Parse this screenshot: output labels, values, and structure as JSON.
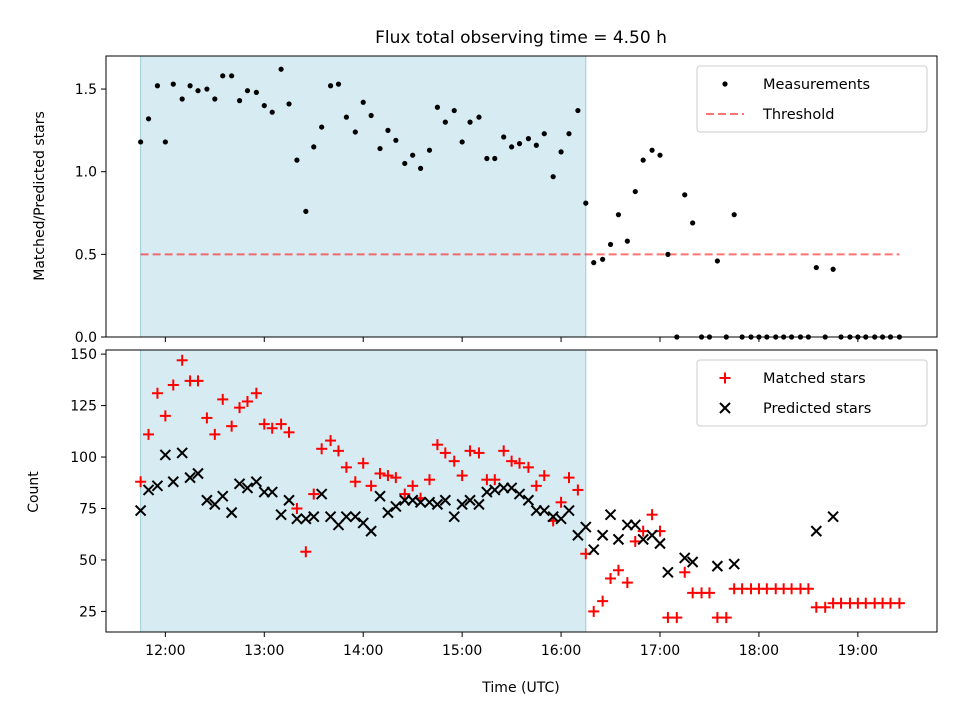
{
  "chart_data": [
    {
      "type": "scatter",
      "title": "Flux total observing time = 4.50 h",
      "xlabel": "",
      "ylabel": "Matched/Predicted stars",
      "xlim": [
        11.4,
        19.8
      ],
      "ylim": [
        0,
        1.7
      ],
      "yticks": [
        0,
        0.5,
        1.0,
        1.5
      ],
      "ytick_labels": [
        "0.0",
        "0.5",
        "1.0",
        "1.5"
      ],
      "shaded_region": [
        11.75,
        16.25
      ],
      "legend_position": "top-right",
      "legend": [
        "Measurements",
        "Threshold"
      ],
      "threshold": {
        "name": "Threshold",
        "value": 0.5,
        "x_range": [
          11.75,
          19.42
        ]
      },
      "series": [
        {
          "name": "Measurements",
          "marker": "dot",
          "color": "#000000",
          "points": [
            [
              11.75,
              1.18
            ],
            [
              11.83,
              1.32
            ],
            [
              11.92,
              1.52
            ],
            [
              12.0,
              1.18
            ],
            [
              12.08,
              1.53
            ],
            [
              12.17,
              1.44
            ],
            [
              12.25,
              1.52
            ],
            [
              12.33,
              1.49
            ],
            [
              12.42,
              1.5
            ],
            [
              12.5,
              1.44
            ],
            [
              12.58,
              1.58
            ],
            [
              12.67,
              1.58
            ],
            [
              12.75,
              1.43
            ],
            [
              12.83,
              1.49
            ],
            [
              12.92,
              1.48
            ],
            [
              13.0,
              1.4
            ],
            [
              13.08,
              1.36
            ],
            [
              13.17,
              1.62
            ],
            [
              13.25,
              1.41
            ],
            [
              13.33,
              1.07
            ],
            [
              13.42,
              0.76
            ],
            [
              13.5,
              1.15
            ],
            [
              13.58,
              1.27
            ],
            [
              13.67,
              1.52
            ],
            [
              13.75,
              1.53
            ],
            [
              13.83,
              1.33
            ],
            [
              13.92,
              1.24
            ],
            [
              14.0,
              1.42
            ],
            [
              14.08,
              1.34
            ],
            [
              14.17,
              1.14
            ],
            [
              14.25,
              1.25
            ],
            [
              14.33,
              1.19
            ],
            [
              14.42,
              1.05
            ],
            [
              14.5,
              1.1
            ],
            [
              14.58,
              1.02
            ],
            [
              14.67,
              1.13
            ],
            [
              14.75,
              1.39
            ],
            [
              14.83,
              1.3
            ],
            [
              14.92,
              1.37
            ],
            [
              15.0,
              1.18
            ],
            [
              15.08,
              1.3
            ],
            [
              15.17,
              1.33
            ],
            [
              15.25,
              1.08
            ],
            [
              15.33,
              1.08
            ],
            [
              15.42,
              1.21
            ],
            [
              15.5,
              1.15
            ],
            [
              15.58,
              1.17
            ],
            [
              15.67,
              1.2
            ],
            [
              15.75,
              1.16
            ],
            [
              15.83,
              1.23
            ],
            [
              15.92,
              0.97
            ],
            [
              16.0,
              1.12
            ],
            [
              16.08,
              1.23
            ],
            [
              16.17,
              1.37
            ],
            [
              16.25,
              0.81
            ],
            [
              16.33,
              0.45
            ],
            [
              16.42,
              0.47
            ],
            [
              16.5,
              0.56
            ],
            [
              16.58,
              0.74
            ],
            [
              16.67,
              0.58
            ],
            [
              16.75,
              0.88
            ],
            [
              16.83,
              1.07
            ],
            [
              16.92,
              1.13
            ],
            [
              17.0,
              1.1
            ],
            [
              17.08,
              0.5
            ],
            [
              17.17,
              0.0
            ],
            [
              17.25,
              0.86
            ],
            [
              17.33,
              0.69
            ],
            [
              17.42,
              0.0
            ],
            [
              17.5,
              0.0
            ],
            [
              17.58,
              0.46
            ],
            [
              17.67,
              0.0
            ],
            [
              17.75,
              0.74
            ],
            [
              17.83,
              0.0
            ],
            [
              17.92,
              0.0
            ],
            [
              18.0,
              0.0
            ],
            [
              18.08,
              0.0
            ],
            [
              18.17,
              0.0
            ],
            [
              18.25,
              0.0
            ],
            [
              18.33,
              0.0
            ],
            [
              18.42,
              0.0
            ],
            [
              18.5,
              0.0
            ],
            [
              18.58,
              0.42
            ],
            [
              18.67,
              0.0
            ],
            [
              18.75,
              0.41
            ],
            [
              18.83,
              0.0
            ],
            [
              18.92,
              0.0
            ],
            [
              19.0,
              0.0
            ],
            [
              19.08,
              0.0
            ],
            [
              19.17,
              0.0
            ],
            [
              19.25,
              0.0
            ],
            [
              19.33,
              0.0
            ],
            [
              19.42,
              0.0
            ]
          ]
        }
      ]
    },
    {
      "type": "scatter",
      "title": "",
      "xlabel": "Time (UTC)",
      "ylabel": "Count",
      "xlim": [
        11.4,
        19.8
      ],
      "ylim": [
        15,
        152
      ],
      "yticks": [
        25,
        50,
        75,
        100,
        125,
        150
      ],
      "ytick_labels": [
        "25",
        "50",
        "75",
        "100",
        "125",
        "150"
      ],
      "xticks": [
        12,
        13,
        14,
        15,
        16,
        17,
        18,
        19
      ],
      "xtick_labels": [
        "12:00",
        "13:00",
        "14:00",
        "15:00",
        "16:00",
        "17:00",
        "18:00",
        "19:00"
      ],
      "shaded_region": [
        11.75,
        16.25
      ],
      "legend_position": "top-right",
      "legend": [
        "Matched stars",
        "Predicted stars"
      ],
      "series": [
        {
          "name": "Matched stars",
          "marker": "plus",
          "color": "#ff0000",
          "points": [
            [
              11.75,
              88
            ],
            [
              11.83,
              111
            ],
            [
              11.92,
              131
            ],
            [
              12.0,
              120
            ],
            [
              12.08,
              135
            ],
            [
              12.17,
              147
            ],
            [
              12.25,
              137
            ],
            [
              12.33,
              137
            ],
            [
              12.42,
              119
            ],
            [
              12.5,
              111
            ],
            [
              12.58,
              128
            ],
            [
              12.67,
              115
            ],
            [
              12.75,
              124
            ],
            [
              12.83,
              127
            ],
            [
              12.92,
              131
            ],
            [
              13.0,
              116
            ],
            [
              13.08,
              114
            ],
            [
              13.17,
              116
            ],
            [
              13.25,
              112
            ],
            [
              13.33,
              75
            ],
            [
              13.42,
              54
            ],
            [
              13.5,
              82
            ],
            [
              13.58,
              104
            ],
            [
              13.67,
              108
            ],
            [
              13.75,
              103
            ],
            [
              13.83,
              95
            ],
            [
              13.92,
              88
            ],
            [
              14.0,
              97
            ],
            [
              14.08,
              86
            ],
            [
              14.17,
              92
            ],
            [
              14.25,
              91
            ],
            [
              14.33,
              90
            ],
            [
              14.42,
              82
            ],
            [
              14.5,
              86
            ],
            [
              14.58,
              80
            ],
            [
              14.67,
              89
            ],
            [
              14.75,
              106
            ],
            [
              14.83,
              102
            ],
            [
              14.92,
              98
            ],
            [
              15.0,
              91
            ],
            [
              15.08,
              103
            ],
            [
              15.17,
              102
            ],
            [
              15.25,
              89
            ],
            [
              15.33,
              89
            ],
            [
              15.42,
              103
            ],
            [
              15.5,
              98
            ],
            [
              15.58,
              97
            ],
            [
              15.67,
              95
            ],
            [
              15.75,
              86
            ],
            [
              15.83,
              91
            ],
            [
              15.92,
              69
            ],
            [
              16.0,
              78
            ],
            [
              16.08,
              90
            ],
            [
              16.17,
              84
            ],
            [
              16.25,
              53
            ],
            [
              16.33,
              25
            ],
            [
              16.42,
              30
            ],
            [
              16.5,
              41
            ],
            [
              16.58,
              45
            ],
            [
              16.67,
              39
            ],
            [
              16.75,
              59
            ],
            [
              16.83,
              64
            ],
            [
              16.92,
              72
            ],
            [
              17.0,
              64
            ],
            [
              17.08,
              22
            ],
            [
              17.17,
              22
            ],
            [
              17.25,
              44
            ],
            [
              17.33,
              34
            ],
            [
              17.42,
              34
            ],
            [
              17.5,
              34
            ],
            [
              17.58,
              22
            ],
            [
              17.67,
              22
            ],
            [
              17.75,
              36
            ],
            [
              17.83,
              36
            ],
            [
              17.92,
              36
            ],
            [
              18.0,
              36
            ],
            [
              18.08,
              36
            ],
            [
              18.17,
              36
            ],
            [
              18.25,
              36
            ],
            [
              18.33,
              36
            ],
            [
              18.42,
              36
            ],
            [
              18.5,
              36
            ],
            [
              18.58,
              27
            ],
            [
              18.67,
              27
            ],
            [
              18.75,
              29
            ],
            [
              18.83,
              29
            ],
            [
              18.92,
              29
            ],
            [
              19.0,
              29
            ],
            [
              19.08,
              29
            ],
            [
              19.17,
              29
            ],
            [
              19.25,
              29
            ],
            [
              19.33,
              29
            ],
            [
              19.42,
              29
            ]
          ]
        },
        {
          "name": "Predicted stars",
          "marker": "x",
          "color": "#000000",
          "points": [
            [
              11.75,
              74
            ],
            [
              11.83,
              84
            ],
            [
              11.92,
              86
            ],
            [
              12.0,
              101
            ],
            [
              12.08,
              88
            ],
            [
              12.17,
              102
            ],
            [
              12.25,
              90
            ],
            [
              12.33,
              92
            ],
            [
              12.42,
              79
            ],
            [
              12.5,
              77
            ],
            [
              12.58,
              81
            ],
            [
              12.67,
              73
            ],
            [
              12.75,
              87
            ],
            [
              12.83,
              85
            ],
            [
              12.92,
              88
            ],
            [
              13.0,
              83
            ],
            [
              13.08,
              83
            ],
            [
              13.17,
              72
            ],
            [
              13.25,
              79
            ],
            [
              13.33,
              70
            ],
            [
              13.42,
              70
            ],
            [
              13.5,
              71
            ],
            [
              13.58,
              82
            ],
            [
              13.67,
              71
            ],
            [
              13.75,
              67
            ],
            [
              13.83,
              71
            ],
            [
              13.92,
              71
            ],
            [
              14.0,
              68
            ],
            [
              14.08,
              64
            ],
            [
              14.17,
              81
            ],
            [
              14.25,
              73
            ],
            [
              14.33,
              76
            ],
            [
              14.42,
              79
            ],
            [
              14.5,
              79
            ],
            [
              14.58,
              78
            ],
            [
              14.67,
              78
            ],
            [
              14.75,
              77
            ],
            [
              14.83,
              79
            ],
            [
              14.92,
              71
            ],
            [
              15.0,
              77
            ],
            [
              15.08,
              79
            ],
            [
              15.17,
              77
            ],
            [
              15.25,
              83
            ],
            [
              15.33,
              84
            ],
            [
              15.42,
              85
            ],
            [
              15.5,
              85
            ],
            [
              15.58,
              82
            ],
            [
              15.67,
              79
            ],
            [
              15.75,
              74
            ],
            [
              15.83,
              74
            ],
            [
              15.92,
              71
            ],
            [
              16.0,
              70
            ],
            [
              16.08,
              74
            ],
            [
              16.17,
              62
            ],
            [
              16.25,
              66
            ],
            [
              16.33,
              55
            ],
            [
              16.42,
              62
            ],
            [
              16.5,
              72
            ],
            [
              16.58,
              60
            ],
            [
              16.67,
              67
            ],
            [
              16.75,
              67
            ],
            [
              16.83,
              60
            ],
            [
              16.92,
              62
            ],
            [
              17.0,
              58
            ],
            [
              17.08,
              44
            ],
            [
              17.25,
              51
            ],
            [
              17.33,
              49
            ],
            [
              17.58,
              47
            ],
            [
              17.75,
              48
            ],
            [
              18.58,
              64
            ],
            [
              18.75,
              71
            ]
          ]
        }
      ]
    }
  ]
}
